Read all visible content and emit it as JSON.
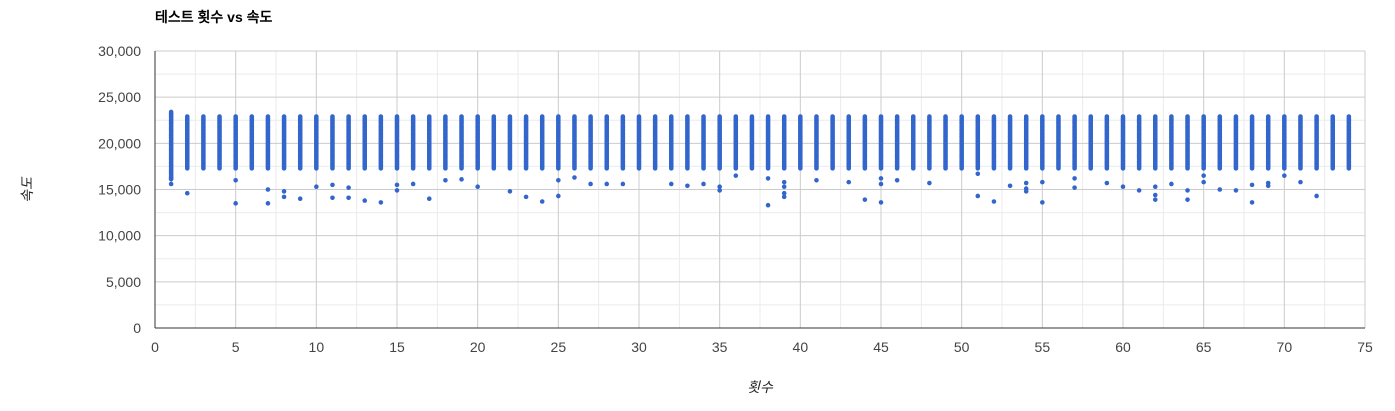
{
  "chart_data": {
    "type": "scatter",
    "title": "테스트 횟수 vs 속도",
    "xlabel": "횟수",
    "ylabel": "속도",
    "xlim": [
      0,
      75
    ],
    "ylim": [
      0,
      30000
    ],
    "x_ticks": [
      {
        "value": 0,
        "label": "0"
      },
      {
        "value": 5,
        "label": "5"
      },
      {
        "value": 10,
        "label": "10"
      },
      {
        "value": 15,
        "label": "15"
      },
      {
        "value": 20,
        "label": "20"
      },
      {
        "value": 25,
        "label": "25"
      },
      {
        "value": 30,
        "label": "30"
      },
      {
        "value": 35,
        "label": "35"
      },
      {
        "value": 40,
        "label": "40"
      },
      {
        "value": 45,
        "label": "45"
      },
      {
        "value": 50,
        "label": "50"
      },
      {
        "value": 55,
        "label": "55"
      },
      {
        "value": 60,
        "label": "60"
      },
      {
        "value": 65,
        "label": "65"
      },
      {
        "value": 70,
        "label": "70"
      },
      {
        "value": 75,
        "label": "75"
      }
    ],
    "y_ticks": [
      {
        "value": 0,
        "label": "0"
      },
      {
        "value": 5000,
        "label": "5,000"
      },
      {
        "value": 10000,
        "label": "10,000"
      },
      {
        "value": 15000,
        "label": "15,000"
      },
      {
        "value": 20000,
        "label": "20,000"
      },
      {
        "value": 25000,
        "label": "25,000"
      },
      {
        "value": 30000,
        "label": "30,000"
      }
    ],
    "grid": true,
    "legend": "none",
    "color": "#3366cc",
    "series": [
      {
        "x_range": [
          1,
          74
        ],
        "band_low": 17200,
        "band_high": 22900,
        "band_high_at_x1": 23400,
        "band_low_at_x1": 16000,
        "outliers": [
          [
            1,
            15600
          ],
          [
            1,
            16200
          ],
          [
            2,
            14600
          ],
          [
            5,
            13500
          ],
          [
            5,
            16000
          ],
          [
            7,
            13500
          ],
          [
            7,
            15000
          ],
          [
            8,
            14200
          ],
          [
            8,
            14800
          ],
          [
            9,
            14000
          ],
          [
            10,
            15300
          ],
          [
            11,
            14100
          ],
          [
            11,
            15500
          ],
          [
            12,
            14100
          ],
          [
            12,
            15200
          ],
          [
            13,
            13800
          ],
          [
            14,
            13600
          ],
          [
            15,
            14900
          ],
          [
            15,
            15500
          ],
          [
            16,
            15600
          ],
          [
            17,
            14000
          ],
          [
            18,
            16000
          ],
          [
            19,
            16100
          ],
          [
            20,
            15300
          ],
          [
            22,
            14800
          ],
          [
            23,
            14200
          ],
          [
            24,
            13700
          ],
          [
            25,
            14300
          ],
          [
            25,
            16000
          ],
          [
            26,
            16300
          ],
          [
            27,
            15600
          ],
          [
            28,
            15600
          ],
          [
            29,
            15600
          ],
          [
            32,
            15600
          ],
          [
            33,
            15400
          ],
          [
            34,
            15600
          ],
          [
            35,
            14900
          ],
          [
            35,
            15300
          ],
          [
            36,
            16500
          ],
          [
            38,
            13300
          ],
          [
            38,
            16200
          ],
          [
            39,
            14200
          ],
          [
            39,
            14600
          ],
          [
            39,
            15300
          ],
          [
            39,
            15800
          ],
          [
            41,
            16000
          ],
          [
            43,
            15800
          ],
          [
            44,
            13900
          ],
          [
            45,
            13600
          ],
          [
            45,
            15600
          ],
          [
            45,
            16200
          ],
          [
            46,
            16000
          ],
          [
            48,
            15700
          ],
          [
            51,
            14300
          ],
          [
            51,
            16700
          ],
          [
            52,
            13700
          ],
          [
            53,
            15400
          ],
          [
            54,
            14800
          ],
          [
            54,
            15100
          ],
          [
            54,
            15700
          ],
          [
            55,
            13600
          ],
          [
            55,
            15800
          ],
          [
            57,
            15200
          ],
          [
            57,
            16200
          ],
          [
            59,
            15700
          ],
          [
            60,
            15300
          ],
          [
            61,
            14900
          ],
          [
            62,
            13900
          ],
          [
            62,
            14400
          ],
          [
            62,
            15300
          ],
          [
            63,
            15600
          ],
          [
            64,
            13900
          ],
          [
            64,
            14900
          ],
          [
            65,
            15800
          ],
          [
            65,
            16500
          ],
          [
            66,
            15000
          ],
          [
            67,
            14900
          ],
          [
            68,
            13600
          ],
          [
            68,
            15500
          ],
          [
            69,
            15400
          ],
          [
            69,
            15700
          ],
          [
            70,
            16500
          ],
          [
            71,
            15800
          ],
          [
            72,
            14300
          ]
        ]
      }
    ]
  }
}
